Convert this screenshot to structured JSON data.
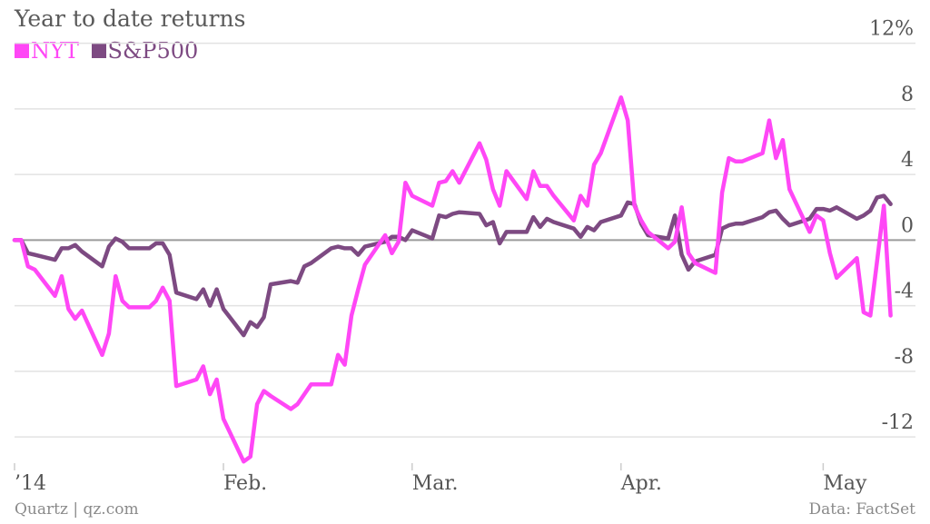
{
  "title": "Year to date returns",
  "legend": [
    {
      "name": "NYT",
      "color": "#ff47f6"
    },
    {
      "name": "S&P500",
      "color": "#7d4a82"
    }
  ],
  "source": "Quartz | qz.com",
  "credit": "Data: FactSet",
  "chart_data": {
    "type": "line",
    "y_ticks": [
      12,
      8,
      4,
      0,
      -4,
      -8,
      -12
    ],
    "y_tick_labels": [
      "12%",
      "8",
      "4",
      "0",
      "-4",
      "-8",
      "-12"
    ],
    "ylim": [
      -13.6,
      13.2
    ],
    "x_ticks": [
      {
        "label": "’14",
        "date": "2014-01-01"
      },
      {
        "label": "Feb.",
        "date": "2014-02-01"
      },
      {
        "label": "Mar.",
        "date": "2014-03-01"
      },
      {
        "label": "Apr.",
        "date": "2014-04-01"
      },
      {
        "label": "May",
        "date": "2014-05-01"
      }
    ],
    "xlim": [
      "2014-01-01",
      "2014-05-12"
    ],
    "grid": "horizontal",
    "series": [
      {
        "name": "NYT",
        "color": "#ff47f6",
        "points": [
          [
            "2014-01-01",
            0
          ],
          [
            "2014-01-02",
            0
          ],
          [
            "2014-01-03",
            -1.6
          ],
          [
            "2014-01-04",
            -1.8
          ],
          [
            "2014-01-07",
            -3.4
          ],
          [
            "2014-01-08",
            -2.2
          ],
          [
            "2014-01-09",
            -4.2
          ],
          [
            "2014-01-10",
            -4.8
          ],
          [
            "2014-01-11",
            -4.3
          ],
          [
            "2014-01-14",
            -7
          ],
          [
            "2014-01-15",
            -5.7
          ],
          [
            "2014-01-16",
            -2.2
          ],
          [
            "2014-01-17",
            -3.7
          ],
          [
            "2014-01-18",
            -4.1
          ],
          [
            "2014-01-21",
            -4.1
          ],
          [
            "2014-01-22",
            -3.7
          ],
          [
            "2014-01-23",
            -2.9
          ],
          [
            "2014-01-24",
            -3.7
          ],
          [
            "2014-01-25",
            -8.9
          ],
          [
            "2014-01-28",
            -8.5
          ],
          [
            "2014-01-29",
            -7.7
          ],
          [
            "2014-01-30",
            -9.4
          ],
          [
            "2014-01-31",
            -8.5
          ],
          [
            "2014-02-01",
            -10.9
          ],
          [
            "2014-02-04",
            -13.5
          ],
          [
            "2014-02-05",
            -13.2
          ],
          [
            "2014-02-06",
            -10
          ],
          [
            "2014-02-07",
            -9.2
          ],
          [
            "2014-02-08",
            -9.5
          ],
          [
            "2014-02-11",
            -10.3
          ],
          [
            "2014-02-12",
            -10
          ],
          [
            "2014-02-13",
            -9.4
          ],
          [
            "2014-02-14",
            -8.8
          ],
          [
            "2014-02-17",
            -8.8
          ],
          [
            "2014-02-18",
            -7
          ],
          [
            "2014-02-19",
            -7.6
          ],
          [
            "2014-02-20",
            -4.6
          ],
          [
            "2014-02-21",
            -3
          ],
          [
            "2014-02-22",
            -1.5
          ],
          [
            "2014-02-25",
            0.3
          ],
          [
            "2014-02-26",
            -0.8
          ],
          [
            "2014-02-27",
            -0.1
          ],
          [
            "2014-02-28",
            3.5
          ],
          [
            "2014-03-01",
            2.7
          ],
          [
            "2014-03-04",
            2.1
          ],
          [
            "2014-03-05",
            3.5
          ],
          [
            "2014-03-06",
            3.6
          ],
          [
            "2014-03-07",
            4.2
          ],
          [
            "2014-03-08",
            3.5
          ],
          [
            "2014-03-11",
            5.9
          ],
          [
            "2014-03-12",
            4.9
          ],
          [
            "2014-03-13",
            3.1
          ],
          [
            "2014-03-14",
            2.1
          ],
          [
            "2014-03-15",
            4.2
          ],
          [
            "2014-03-18",
            2.5
          ],
          [
            "2014-03-19",
            4.2
          ],
          [
            "2014-03-20",
            3.3
          ],
          [
            "2014-03-21",
            3.3
          ],
          [
            "2014-03-22",
            2.7
          ],
          [
            "2014-03-25",
            1.2
          ],
          [
            "2014-03-26",
            2.7
          ],
          [
            "2014-03-27",
            2.1
          ],
          [
            "2014-03-28",
            4.6
          ],
          [
            "2014-03-29",
            5.3
          ],
          [
            "2014-04-01",
            8.7
          ],
          [
            "2014-04-02",
            7.3
          ],
          [
            "2014-04-03",
            2.1
          ],
          [
            "2014-04-04",
            1.2
          ],
          [
            "2014-04-05",
            0.5
          ],
          [
            "2014-04-08",
            -0.5
          ],
          [
            "2014-04-09",
            -0.1
          ],
          [
            "2014-04-10",
            2
          ],
          [
            "2014-04-11",
            -0.8
          ],
          [
            "2014-04-12",
            -1.4
          ],
          [
            "2014-04-15",
            -2
          ],
          [
            "2014-04-16",
            2.9
          ],
          [
            "2014-04-17",
            5
          ],
          [
            "2014-04-18",
            4.8
          ],
          [
            "2014-04-19",
            4.8
          ],
          [
            "2014-04-22",
            5.3
          ],
          [
            "2014-04-23",
            7.3
          ],
          [
            "2014-04-24",
            5
          ],
          [
            "2014-04-25",
            6.1
          ],
          [
            "2014-04-26",
            3.1
          ],
          [
            "2014-04-29",
            0.5
          ],
          [
            "2014-04-30",
            1.5
          ],
          [
            "2014-05-01",
            1.2
          ],
          [
            "2014-05-02",
            -0.8
          ],
          [
            "2014-05-03",
            -2.3
          ],
          [
            "2014-05-06",
            -1.1
          ],
          [
            "2014-05-07",
            -4.4
          ],
          [
            "2014-05-08",
            -4.6
          ],
          [
            "2014-05-09",
            -1.3
          ],
          [
            "2014-05-10",
            2.1
          ],
          [
            "2014-05-11",
            -4.6
          ]
        ]
      },
      {
        "name": "S&P500",
        "color": "#7d4a82",
        "points": [
          [
            "2014-01-01",
            0
          ],
          [
            "2014-01-02",
            0
          ],
          [
            "2014-01-03",
            -0.8
          ],
          [
            "2014-01-04",
            -0.9
          ],
          [
            "2014-01-07",
            -1.2
          ],
          [
            "2014-01-08",
            -0.5
          ],
          [
            "2014-01-09",
            -0.5
          ],
          [
            "2014-01-10",
            -0.3
          ],
          [
            "2014-01-11",
            -0.7
          ],
          [
            "2014-01-14",
            -1.6
          ],
          [
            "2014-01-15",
            -0.4
          ],
          [
            "2014-01-16",
            0.1
          ],
          [
            "2014-01-17",
            -0.1
          ],
          [
            "2014-01-18",
            -0.5
          ],
          [
            "2014-01-21",
            -0.5
          ],
          [
            "2014-01-22",
            -0.2
          ],
          [
            "2014-01-23",
            -0.2
          ],
          [
            "2014-01-24",
            -0.9
          ],
          [
            "2014-01-25",
            -3.2
          ],
          [
            "2014-01-28",
            -3.6
          ],
          [
            "2014-01-29",
            -3
          ],
          [
            "2014-01-30",
            -4
          ],
          [
            "2014-01-31",
            -3
          ],
          [
            "2014-02-01",
            -4.2
          ],
          [
            "2014-02-04",
            -5.8
          ],
          [
            "2014-02-05",
            -5
          ],
          [
            "2014-02-06",
            -5.3
          ],
          [
            "2014-02-07",
            -4.7
          ],
          [
            "2014-02-08",
            -2.7
          ],
          [
            "2014-02-11",
            -2.5
          ],
          [
            "2014-02-12",
            -2.6
          ],
          [
            "2014-02-13",
            -1.6
          ],
          [
            "2014-02-14",
            -1.4
          ],
          [
            "2014-02-17",
            -0.5
          ],
          [
            "2014-02-18",
            -0.4
          ],
          [
            "2014-02-19",
            -0.5
          ],
          [
            "2014-02-20",
            -0.5
          ],
          [
            "2014-02-21",
            -0.9
          ],
          [
            "2014-02-22",
            -0.4
          ],
          [
            "2014-02-25",
            -0.1
          ],
          [
            "2014-02-26",
            0.2
          ],
          [
            "2014-02-27",
            0.2
          ],
          [
            "2014-02-28",
            0
          ],
          [
            "2014-03-01",
            0.6
          ],
          [
            "2014-03-04",
            0.1
          ],
          [
            "2014-03-05",
            1.5
          ],
          [
            "2014-03-06",
            1.4
          ],
          [
            "2014-03-07",
            1.6
          ],
          [
            "2014-03-08",
            1.7
          ],
          [
            "2014-03-11",
            1.6
          ],
          [
            "2014-03-12",
            0.9
          ],
          [
            "2014-03-13",
            1.1
          ],
          [
            "2014-03-14",
            -0.2
          ],
          [
            "2014-03-15",
            0.5
          ],
          [
            "2014-03-18",
            0.5
          ],
          [
            "2014-03-19",
            1.4
          ],
          [
            "2014-03-20",
            0.8
          ],
          [
            "2014-03-21",
            1.3
          ],
          [
            "2014-03-22",
            1.1
          ],
          [
            "2014-03-25",
            0.7
          ],
          [
            "2014-03-26",
            0.2
          ],
          [
            "2014-03-27",
            0.8
          ],
          [
            "2014-03-28",
            0.6
          ],
          [
            "2014-03-29",
            1.1
          ],
          [
            "2014-04-01",
            1.5
          ],
          [
            "2014-04-02",
            2.3
          ],
          [
            "2014-04-03",
            2.2
          ],
          [
            "2014-04-04",
            1
          ],
          [
            "2014-04-05",
            0.3
          ],
          [
            "2014-04-08",
            0.1
          ],
          [
            "2014-04-09",
            1.5
          ],
          [
            "2014-04-10",
            -0.9
          ],
          [
            "2014-04-11",
            -1.8
          ],
          [
            "2014-04-12",
            -1.3
          ],
          [
            "2014-04-15",
            -0.9
          ],
          [
            "2014-04-16",
            0.7
          ],
          [
            "2014-04-17",
            0.9
          ],
          [
            "2014-04-18",
            1
          ],
          [
            "2014-04-19",
            1
          ],
          [
            "2014-04-22",
            1.4
          ],
          [
            "2014-04-23",
            1.7
          ],
          [
            "2014-04-24",
            1.8
          ],
          [
            "2014-04-25",
            1.3
          ],
          [
            "2014-04-26",
            0.9
          ],
          [
            "2014-04-29",
            1.3
          ],
          [
            "2014-04-30",
            1.9
          ],
          [
            "2014-05-01",
            1.9
          ],
          [
            "2014-05-02",
            1.8
          ],
          [
            "2014-05-03",
            2
          ],
          [
            "2014-05-06",
            1.3
          ],
          [
            "2014-05-07",
            1.5
          ],
          [
            "2014-05-08",
            1.8
          ],
          [
            "2014-05-09",
            2.6
          ],
          [
            "2014-05-10",
            2.7
          ],
          [
            "2014-05-11",
            2.2
          ]
        ]
      }
    ]
  }
}
